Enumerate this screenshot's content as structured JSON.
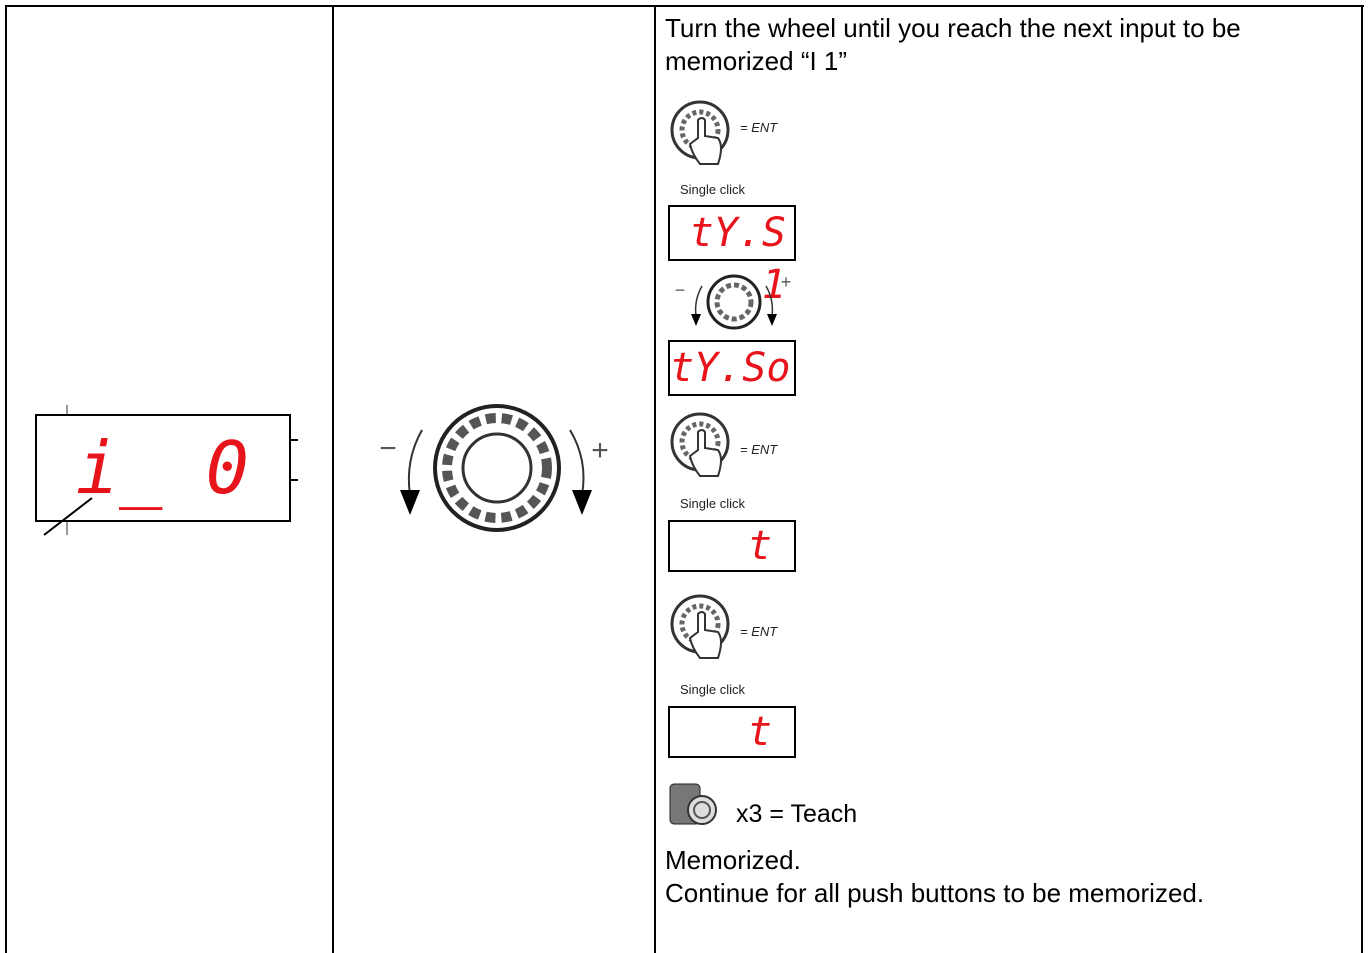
{
  "left_display": "i_ 0",
  "wheel": {
    "minus": "−",
    "plus": "+"
  },
  "steps": {
    "intro": "Turn the wheel until you reach the next input to be memorized “I 1”",
    "click_1": {
      "label": "= ENT",
      "caption": "Single click"
    },
    "display_1": "tY.S 1",
    "wheel": {
      "minus": "−",
      "plus": "+"
    },
    "display_2": "tY.So",
    "click_2": {
      "label": "= ENT",
      "caption": "Single click"
    },
    "display_3": "t",
    "click_3": {
      "label": "= ENT",
      "caption": "Single click"
    },
    "display_4": "t",
    "teach": "x3 = Teach",
    "result": "Memorized.",
    "continue": "Continue for all push buttons to be memorized."
  }
}
